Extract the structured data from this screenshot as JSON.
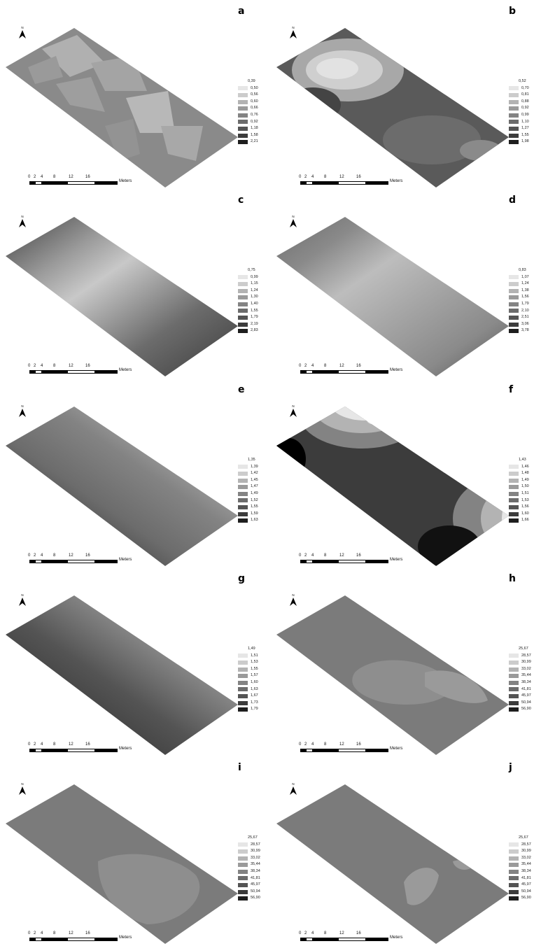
{
  "north_label": "N",
  "scale_bar": {
    "ticks": [
      "0",
      "2",
      "4",
      "8",
      "12",
      "16"
    ],
    "unit": "Meters"
  },
  "panels": [
    {
      "letter": "a",
      "legend": [
        "0,39",
        "0,50",
        "0,56",
        "0,60",
        "0,66",
        "0,76",
        "0,92",
        "1,18",
        "1,58",
        "2,21"
      ]
    },
    {
      "letter": "b",
      "legend": [
        "0,52",
        "0,70",
        "0,81",
        "0,88",
        "0,92",
        "0,99",
        "1,10",
        "1,27",
        "1,55",
        "1,98"
      ]
    },
    {
      "letter": "c",
      "legend": [
        "0,75",
        "0,99",
        "1,15",
        "1,24",
        "1,30",
        "1,40",
        "1,55",
        "1,79",
        "2,19",
        "2,83"
      ]
    },
    {
      "letter": "d",
      "legend": [
        "0,83",
        "1,07",
        "1,24",
        "1,38",
        "1,56",
        "1,79",
        "2,10",
        "2,51",
        "3,06",
        "3,78"
      ]
    },
    {
      "letter": "e",
      "legend": [
        "1,35",
        "1,39",
        "1,42",
        "1,45",
        "1,47",
        "1,49",
        "1,52",
        "1,55",
        "1,59",
        "1,63"
      ]
    },
    {
      "letter": "f",
      "legend": [
        "1,43",
        "1,46",
        "1,48",
        "1,49",
        "1,50",
        "1,51",
        "1,53",
        "1,56",
        "1,60",
        "1,66"
      ]
    },
    {
      "letter": "g",
      "legend": [
        "1,49",
        "1,51",
        "1,53",
        "1,55",
        "1,57",
        "1,60",
        "1,63",
        "1,67",
        "1,73",
        "1,79"
      ]
    },
    {
      "letter": "h",
      "legend": [
        "25,67",
        "28,57",
        "30,99",
        "33,02",
        "35,44",
        "38,34",
        "41,81",
        "45,97",
        "50,94",
        "56,90"
      ]
    },
    {
      "letter": "i",
      "legend": [
        "25,67",
        "28,57",
        "30,99",
        "33,02",
        "35,44",
        "38,34",
        "41,81",
        "45,97",
        "50,94",
        "56,90"
      ]
    },
    {
      "letter": "j",
      "legend": [
        "25,67",
        "28,57",
        "30,99",
        "33,02",
        "35,44",
        "38,34",
        "41,81",
        "45,97",
        "50,94",
        "56,90"
      ]
    }
  ],
  "legend_colors": [
    "#e6e6e6",
    "#cccccc",
    "#b3b3b3",
    "#9a9a9a",
    "#838383",
    "#6c6c6c",
    "#545454",
    "#3c3c3c",
    "#1e1e1e",
    "#000000"
  ]
}
